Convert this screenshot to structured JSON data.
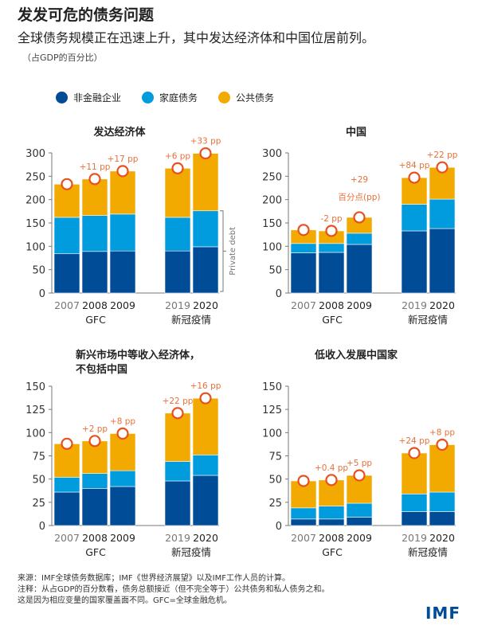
{
  "title": "发发可危的债务问题",
  "subtitle": "全球债务规模正在迅速上升，其中发达经济体和中国位居前列。",
  "unit": "（占GDP的百分比）",
  "legend": [
    {
      "label": "非金融企业",
      "color": "#004C97"
    },
    {
      "label": "家庭债务",
      "color": "#009CDE"
    },
    {
      "label": "公共债务",
      "color": "#F2A900"
    }
  ],
  "colors": {
    "marker": "#E8501E",
    "annotation": "#E8703A"
  },
  "chart_data": [
    {
      "type": "bar",
      "stacked": true,
      "title": "发达经济体",
      "categories": [
        "2007",
        "2008",
        "2009",
        "2019",
        "2020"
      ],
      "group_labels": [
        "GFC",
        "新冠疫情"
      ],
      "ylim": [
        0,
        300
      ],
      "yticks": [
        0,
        50,
        100,
        150,
        200,
        250,
        300
      ],
      "series": [
        {
          "name": "非金融企业",
          "values": [
            84,
            89,
            90,
            90,
            99
          ]
        },
        {
          "name": "家庭债务",
          "values": [
            78,
            77,
            79,
            72,
            77
          ]
        },
        {
          "name": "公共债务",
          "values": [
            71,
            78,
            92,
            105,
            123
          ]
        }
      ],
      "totals": [
        233,
        244,
        261,
        267,
        299
      ],
      "annotations": [
        "",
        "+11 pp",
        "+17 pp",
        "+6 pp",
        "+33 pp"
      ],
      "bracket_label": "Private debt"
    },
    {
      "type": "bar",
      "stacked": true,
      "title": "中国",
      "categories": [
        "2007",
        "2008",
        "2009",
        "2019",
        "2020"
      ],
      "group_labels": [
        "GFC",
        "新冠疫情"
      ],
      "ylim": [
        0,
        300
      ],
      "yticks": [
        0,
        50,
        100,
        150,
        200,
        250,
        300
      ],
      "series": [
        {
          "name": "非金融企业",
          "values": [
            86,
            87,
            104,
            133,
            138
          ]
        },
        {
          "name": "家庭债务",
          "values": [
            20,
            19,
            24,
            57,
            63
          ]
        },
        {
          "name": "公共债务",
          "values": [
            29,
            27,
            34,
            57,
            68
          ]
        }
      ],
      "totals": [
        135,
        133,
        162,
        247,
        269
      ],
      "annotations": [
        "",
        "-2 pp",
        "+29\n百分点(pp)",
        "+84 pp",
        "+22 pp"
      ]
    },
    {
      "type": "bar",
      "stacked": true,
      "title": "新兴市场中等收入经济体，\n不包括中国",
      "categories": [
        "2007",
        "2008",
        "2009",
        "2019",
        "2020"
      ],
      "group_labels": [
        "GFC",
        "新冠疫情"
      ],
      "ylim": [
        0,
        150
      ],
      "yticks": [
        0,
        25,
        50,
        75,
        100,
        125,
        150
      ],
      "series": [
        {
          "name": "非金融企业",
          "values": [
            36,
            40,
            42,
            48,
            54
          ]
        },
        {
          "name": "家庭债务",
          "values": [
            16,
            16,
            17,
            21,
            22
          ]
        },
        {
          "name": "公共债务",
          "values": [
            36,
            35,
            40,
            52,
            61
          ]
        }
      ],
      "totals": [
        88,
        91,
        99,
        121,
        137
      ],
      "annotations": [
        "",
        "+2 pp",
        "+8 pp",
        "+22 pp",
        "+16 pp"
      ]
    },
    {
      "type": "bar",
      "stacked": true,
      "title": "低收入发展中国家",
      "categories": [
        "2007",
        "2008",
        "2009",
        "2019",
        "2020"
      ],
      "group_labels": [
        "GFC",
        "新冠疫情"
      ],
      "ylim": [
        0,
        150
      ],
      "yticks": [
        0,
        25,
        50,
        75,
        100,
        125,
        150
      ],
      "series": [
        {
          "name": "非金融企业",
          "values": [
            7,
            7,
            9,
            15,
            15
          ]
        },
        {
          "name": "家庭债务",
          "values": [
            12,
            14,
            15,
            19,
            21
          ]
        },
        {
          "name": "公共债务",
          "values": [
            29,
            28,
            30,
            44,
            51
          ]
        }
      ],
      "totals": [
        48,
        49,
        54,
        78,
        87
      ],
      "annotations": [
        "",
        "+0.4 pp",
        "+5 pp",
        "+24 pp",
        "+8 pp"
      ]
    }
  ],
  "footer": [
    "来源：IMF全球债务数据库；IMF《世界经济展望》以及IMF工作人员的计算。",
    "注释：从占GDP的百分数看，债务总额接近（但不完全等于）公共债务和私人债务之和。",
    "这是因为相应变量的国家覆盖面不同。GFC=全球金融危机。"
  ],
  "logo": "IMF"
}
